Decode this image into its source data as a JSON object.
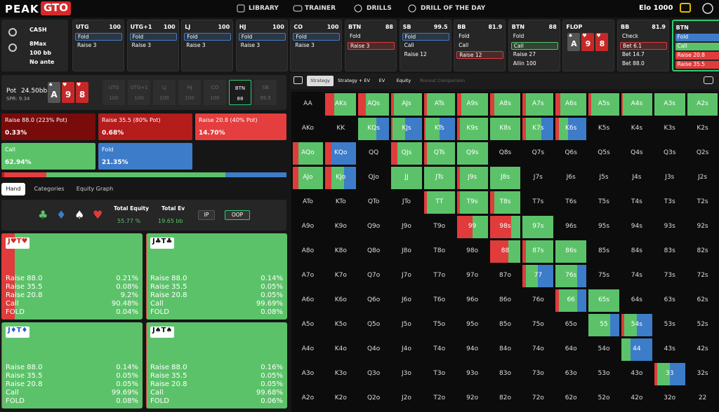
{
  "nav": {
    "logo": [
      "PEAK",
      "GTO"
    ],
    "links": [
      "LIBRARY",
      "TRAINER",
      "DRILLS",
      "DRILL OF THE DAY"
    ],
    "elo": "Elo 1000"
  },
  "game": [
    "CASH",
    "8Max",
    "100 bb",
    "No ante"
  ],
  "action_cards": [
    {
      "pos": "UTG",
      "stack": "100",
      "options": [
        "Fold",
        "Raise 3"
      ],
      "selected": 0
    },
    {
      "pos": "UTG+1",
      "stack": "100",
      "options": [
        "Fold",
        "Raise 3"
      ],
      "selected": 0
    },
    {
      "pos": "LJ",
      "stack": "100",
      "options": [
        "Fold",
        "Raise 3"
      ],
      "selected": 0
    },
    {
      "pos": "HJ",
      "stack": "100",
      "options": [
        "Fold",
        "Raise 3"
      ],
      "selected": 0
    },
    {
      "pos": "CO",
      "stack": "100",
      "options": [
        "Fold",
        "Raise 3"
      ],
      "selected": 0
    },
    {
      "pos": "BTN",
      "stack": "88",
      "options": [
        "Fold",
        "Raise 3"
      ],
      "selected": 1
    },
    {
      "pos": "SB",
      "stack": "99.5",
      "options": [
        "Fold",
        "Call",
        "Raise 12"
      ],
      "selected": 0
    },
    {
      "pos": "BB",
      "stack": "81.9",
      "options": [
        "Fold",
        "Call",
        "Raise 12"
      ],
      "selected": 2
    },
    {
      "pos": "BTN",
      "stack": "88",
      "options": [
        "Fold",
        "Call",
        "Raise 27",
        "Allin 100"
      ],
      "selected": 1
    },
    {
      "pos": "FLOP",
      "board": [
        {
          "rank": "A",
          "suit": "♠"
        },
        {
          "rank": "9",
          "suit": "♥"
        },
        {
          "rank": "8",
          "suit": "♥"
        }
      ]
    },
    {
      "pos": "BB",
      "stack": "81.9",
      "options": [
        "Check",
        "Bet 6.1",
        "Bet 14.7",
        "Bet 88.0"
      ],
      "selected": 1
    },
    {
      "pos": "BTN",
      "options": [
        "Fold",
        "Call",
        "Raise 20.8",
        "Raise 35.5"
      ],
      "active": true
    }
  ],
  "board": {
    "pot_label": "Pot",
    "pot": "24.50bb",
    "spr": "SPR: 9.34",
    "cards": [
      {
        "rank": "A",
        "suit": "♠"
      },
      {
        "rank": "9",
        "suit": "♥"
      },
      {
        "rank": "8",
        "suit": "♥"
      }
    ],
    "seats": [
      {
        "pos": "UTG",
        "stack": "100"
      },
      {
        "pos": "UTG+1",
        "stack": "100"
      },
      {
        "pos": "LJ",
        "stack": "100"
      },
      {
        "pos": "HJ",
        "stack": "100"
      },
      {
        "pos": "CO",
        "stack": "100"
      },
      {
        "pos": "BTN",
        "stack": "88"
      },
      {
        "pos": "SB",
        "stack": "99.5"
      }
    ],
    "active_seat": 5
  },
  "summary": [
    {
      "label": "Raise 88.0 (223% Pot)",
      "freq": "0.33%",
      "color": "#7a0b0b"
    },
    {
      "label": "Raise 35.5 (80% Pot)",
      "freq": "0.68%",
      "color": "#b51c1c"
    },
    {
      "label": "Raise 20.8 (40% Pot)",
      "freq": "14.70%",
      "color": "#e53e3e"
    },
    {
      "label": "Call",
      "freq": "62.94%",
      "color": "#5cc26a"
    },
    {
      "label": "Fold",
      "freq": "21.35%",
      "color": "#3d7cc9"
    }
  ],
  "tabs": [
    "Hand",
    "Categories",
    "Equity Graph"
  ],
  "equity": {
    "suit_filters": [
      "♣",
      "♦",
      "♠",
      "♥"
    ],
    "total_equity_label": "Total Equity",
    "total_equity": "55.77 %",
    "total_ev_label": "Total Ev",
    "total_ev": "19.65 bb",
    "buttons": [
      "IP",
      "OOP"
    ]
  },
  "hands": [
    {
      "hand": "J♥T♥",
      "rows": [
        [
          "Raise 88.0",
          "0.21%"
        ],
        [
          "Raise 35.5",
          "0.08%"
        ],
        [
          "Raise 20.8",
          "9.2%"
        ],
        [
          "Call",
          "90.48%"
        ],
        [
          "FOLD",
          "0.04%"
        ]
      ]
    },
    {
      "hand": "J♣T♣",
      "rows": [
        [
          "Raise 88.0",
          "0.14%"
        ],
        [
          "Raise 35.5",
          "0.05%"
        ],
        [
          "Raise 20.8",
          "0.05%"
        ],
        [
          "Call",
          "99.69%"
        ],
        [
          "FOLD",
          "0.08%"
        ]
      ]
    },
    {
      "hand": "J♦T♦",
      "rows": [
        [
          "Raise 88.0",
          "0.14%"
        ],
        [
          "Raise 35.5",
          "0.05%"
        ],
        [
          "Raise 20.8",
          "0.05%"
        ],
        [
          "Call",
          "99.69%"
        ],
        [
          "FOLD",
          "0.08%"
        ]
      ]
    },
    {
      "hand": "J♠T♠",
      "rows": [
        [
          "Raise 88.0",
          "0.16%"
        ],
        [
          "Raise 35.5",
          "0.05%"
        ],
        [
          "Raise 20.8",
          "0.05%"
        ],
        [
          "Call",
          "99.68%"
        ],
        [
          "FOLD",
          "0.06%"
        ]
      ]
    }
  ],
  "grid": {
    "tabs": [
      "Strategy",
      "Strategy + EV",
      "EV",
      "Equity",
      "Runout Comparison"
    ],
    "active_tab": 0,
    "rows": [
      [
        "AA",
        {
          "hand": "AKs",
          "raise": 30,
          "call": 70,
          "fold": 0
        },
        {
          "hand": "AQs",
          "raise": 25,
          "call": 75,
          "fold": 0
        },
        {
          "hand": "AJs",
          "raise": 10,
          "call": 90,
          "fold": 0
        },
        {
          "hand": "ATs",
          "raise": 10,
          "call": 90,
          "fold": 0
        },
        {
          "hand": "A9s",
          "raise": 15,
          "call": 85,
          "fold": 0
        },
        {
          "hand": "A8s",
          "raise": 15,
          "call": 85,
          "fold": 0
        },
        {
          "hand": "A7s",
          "raise": 10,
          "call": 90,
          "fold": 0
        },
        {
          "hand": "A6s",
          "raise": 15,
          "call": 85,
          "fold": 0
        },
        {
          "hand": "A5s",
          "raise": 10,
          "call": 90,
          "fold": 0
        },
        {
          "hand": "A4s",
          "raise": 5,
          "call": 95,
          "fold": 0
        },
        {
          "hand": "A3s",
          "raise": 0,
          "call": 100,
          "fold": 0
        },
        {
          "hand": "A2s",
          "raise": 0,
          "call": 100,
          "fold": 0
        }
      ],
      [
        "AKo",
        "KK",
        {
          "hand": "KQs",
          "raise": 0,
          "call": 60,
          "fold": 40
        },
        {
          "hand": "KJs",
          "raise": 5,
          "call": 40,
          "fold": 55
        },
        {
          "hand": "KTs",
          "raise": 5,
          "call": 45,
          "fold": 50
        },
        {
          "hand": "K9s",
          "raise": 10,
          "call": 90,
          "fold": 0
        },
        {
          "hand": "K8s",
          "raise": 0,
          "call": 100,
          "fold": 0
        },
        {
          "hand": "K7s",
          "raise": 10,
          "call": 50,
          "fold": 40
        },
        {
          "hand": "K6s",
          "raise": 10,
          "call": 30,
          "fold": 60
        },
        "K5s",
        "K4s",
        "K3s",
        "K2s"
      ],
      [
        {
          "hand": "AQo",
          "raise": 20,
          "call": 80,
          "fold": 0
        },
        {
          "hand": "KQo",
          "raise": 20,
          "call": 0,
          "fold": 80
        },
        "QQ",
        {
          "hand": "QJs",
          "raise": 20,
          "call": 80,
          "fold": 0
        },
        {
          "hand": "QTs",
          "raise": 10,
          "call": 90,
          "fold": 0
        },
        {
          "hand": "Q9s",
          "raise": 0,
          "call": 100,
          "fold": 0
        },
        "Q8s",
        "Q7s",
        "Q6s",
        "Q5s",
        "Q4s",
        "Q3s",
        "Q2s"
      ],
      [
        {
          "hand": "AJo",
          "raise": 20,
          "call": 80,
          "fold": 0
        },
        {
          "hand": "KJo",
          "raise": 20,
          "call": 40,
          "fold": 40
        },
        "QJo",
        {
          "hand": "JJ",
          "raise": 0,
          "call": 100,
          "fold": 0
        },
        {
          "hand": "JTs",
          "raise": 0,
          "call": 100,
          "fold": 0
        },
        {
          "hand": "J9s",
          "raise": 10,
          "call": 90,
          "fold": 0
        },
        {
          "hand": "J8s",
          "raise": 0,
          "call": 100,
          "fold": 0
        },
        "J7s",
        "J6s",
        "J5s",
        "J4s",
        "J3s",
        "J2s"
      ],
      [
        "ATo",
        "KTo",
        "QTo",
        "JTo",
        {
          "hand": "TT",
          "raise": 10,
          "call": 90,
          "fold": 0
        },
        {
          "hand": "T9s",
          "raise": 10,
          "call": 90,
          "fold": 0
        },
        {
          "hand": "T8s",
          "raise": 15,
          "call": 85,
          "fold": 0
        },
        "T7s",
        "T6s",
        "T5s",
        "T4s",
        "T3s",
        "T2s"
      ],
      [
        "A9o",
        "K9o",
        "Q9o",
        "J9o",
        "T9o",
        {
          "hand": "99",
          "raise": 50,
          "call": 50,
          "fold": 0
        },
        {
          "hand": "98s",
          "raise": 70,
          "call": 30,
          "fold": 0
        },
        {
          "hand": "97s",
          "raise": 0,
          "call": 100,
          "fold": 0
        },
        "96s",
        "95s",
        "94s",
        "93s",
        "92s"
      ],
      [
        "A8o",
        "K8o",
        "Q8o",
        "J8o",
        "T8o",
        "98o",
        {
          "hand": "88",
          "raise": 60,
          "call": 40,
          "fold": 0
        },
        {
          "hand": "87s",
          "raise": 10,
          "call": 90,
          "fold": 0
        },
        {
          "hand": "86s",
          "raise": 0,
          "call": 100,
          "fold": 0
        },
        "85s",
        "84s",
        "83s",
        "82s"
      ],
      [
        "A7o",
        "K7o",
        "Q7o",
        "J7o",
        "T7o",
        "97o",
        "87o",
        {
          "hand": "77",
          "raise": 10,
          "call": 40,
          "fold": 50
        },
        {
          "hand": "76s",
          "raise": 0,
          "call": 70,
          "fold": 30
        },
        "75s",
        "74s",
        "73s",
        "72s"
      ],
      [
        "A6o",
        "K6o",
        "Q6o",
        "J6o",
        "T6o",
        "96o",
        "86o",
        "76o",
        {
          "hand": "66",
          "raise": 10,
          "call": 60,
          "fold": 30
        },
        {
          "hand": "65s",
          "raise": 0,
          "call": 100,
          "fold": 0
        },
        "64s",
        "63s",
        "62s"
      ],
      [
        "A5o",
        "K5o",
        "Q5o",
        "J5o",
        "T5o",
        "95o",
        "85o",
        "75o",
        "65o",
        {
          "hand": "55",
          "raise": 0,
          "call": 70,
          "fold": 30
        },
        {
          "hand": "54s",
          "raise": 10,
          "call": 40,
          "fold": 50
        },
        "53s",
        "52s"
      ],
      [
        "A4o",
        "K4o",
        "Q4o",
        "J4o",
        "T4o",
        "94o",
        "84o",
        "74o",
        "64o",
        "54o",
        {
          "hand": "44",
          "raise": 0,
          "call": 30,
          "fold": 70
        },
        "43s",
        "42s"
      ],
      [
        "A3o",
        "K3o",
        "Q3o",
        "J3o",
        "T3o",
        "93o",
        "83o",
        "73o",
        "63o",
        "53o",
        "43o",
        {
          "hand": "33",
          "raise": 10,
          "call": 40,
          "fold": 50
        },
        "32s"
      ],
      [
        "A2o",
        "K2o",
        "Q2o",
        "J2o",
        "T2o",
        "92o",
        "82o",
        "72o",
        "62o",
        "52o",
        "42o",
        "32o",
        "22"
      ]
    ]
  }
}
